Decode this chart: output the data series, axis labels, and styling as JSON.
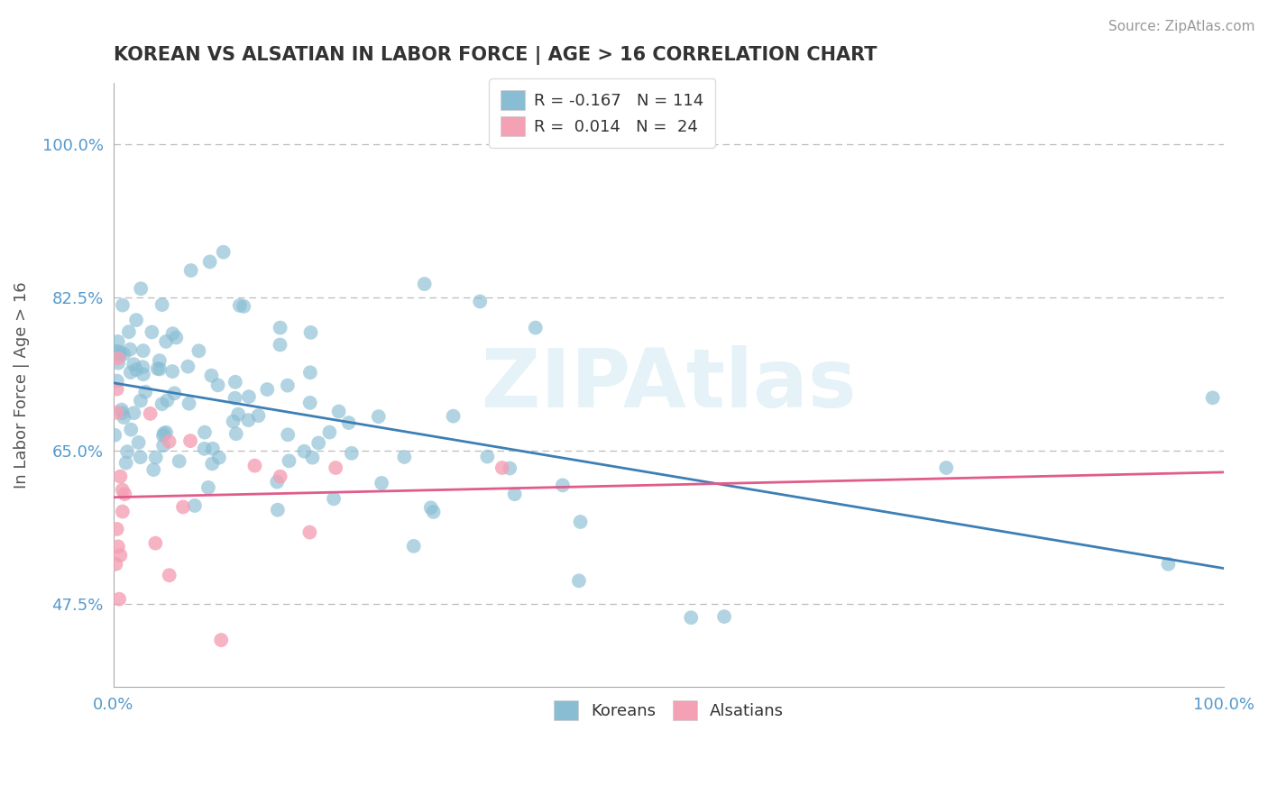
{
  "title": "KOREAN VS ALSATIAN IN LABOR FORCE | AGE > 16 CORRELATION CHART",
  "source_text": "Source: ZipAtlas.com",
  "ylabel": "In Labor Force | Age > 16",
  "xlim": [
    0.0,
    1.0
  ],
  "ylim": [
    0.38,
    1.07
  ],
  "x_ticks": [
    0.0,
    1.0
  ],
  "x_tick_labels": [
    "0.0%",
    "100.0%"
  ],
  "y_ticks": [
    0.475,
    0.65,
    0.825,
    1.0
  ],
  "y_tick_labels": [
    "47.5%",
    "65.0%",
    "82.5%",
    "100.0%"
  ],
  "blue_color": "#89bdd3",
  "pink_color": "#f4a0b5",
  "blue_line_color": "#3d7fb5",
  "pink_line_color": "#e05c8a",
  "watermark": "ZIPAtlas",
  "background_color": "#ffffff",
  "grid_color": "#bbbbbb",
  "title_color": "#333333",
  "source_color": "#999999",
  "tick_label_color": "#5599cc",
  "axis_label_color": "#555555",
  "legend_label_color": "#333333",
  "korean_R": -0.167,
  "korean_N": 114,
  "alsatian_R": 0.014,
  "alsatian_N": 24
}
